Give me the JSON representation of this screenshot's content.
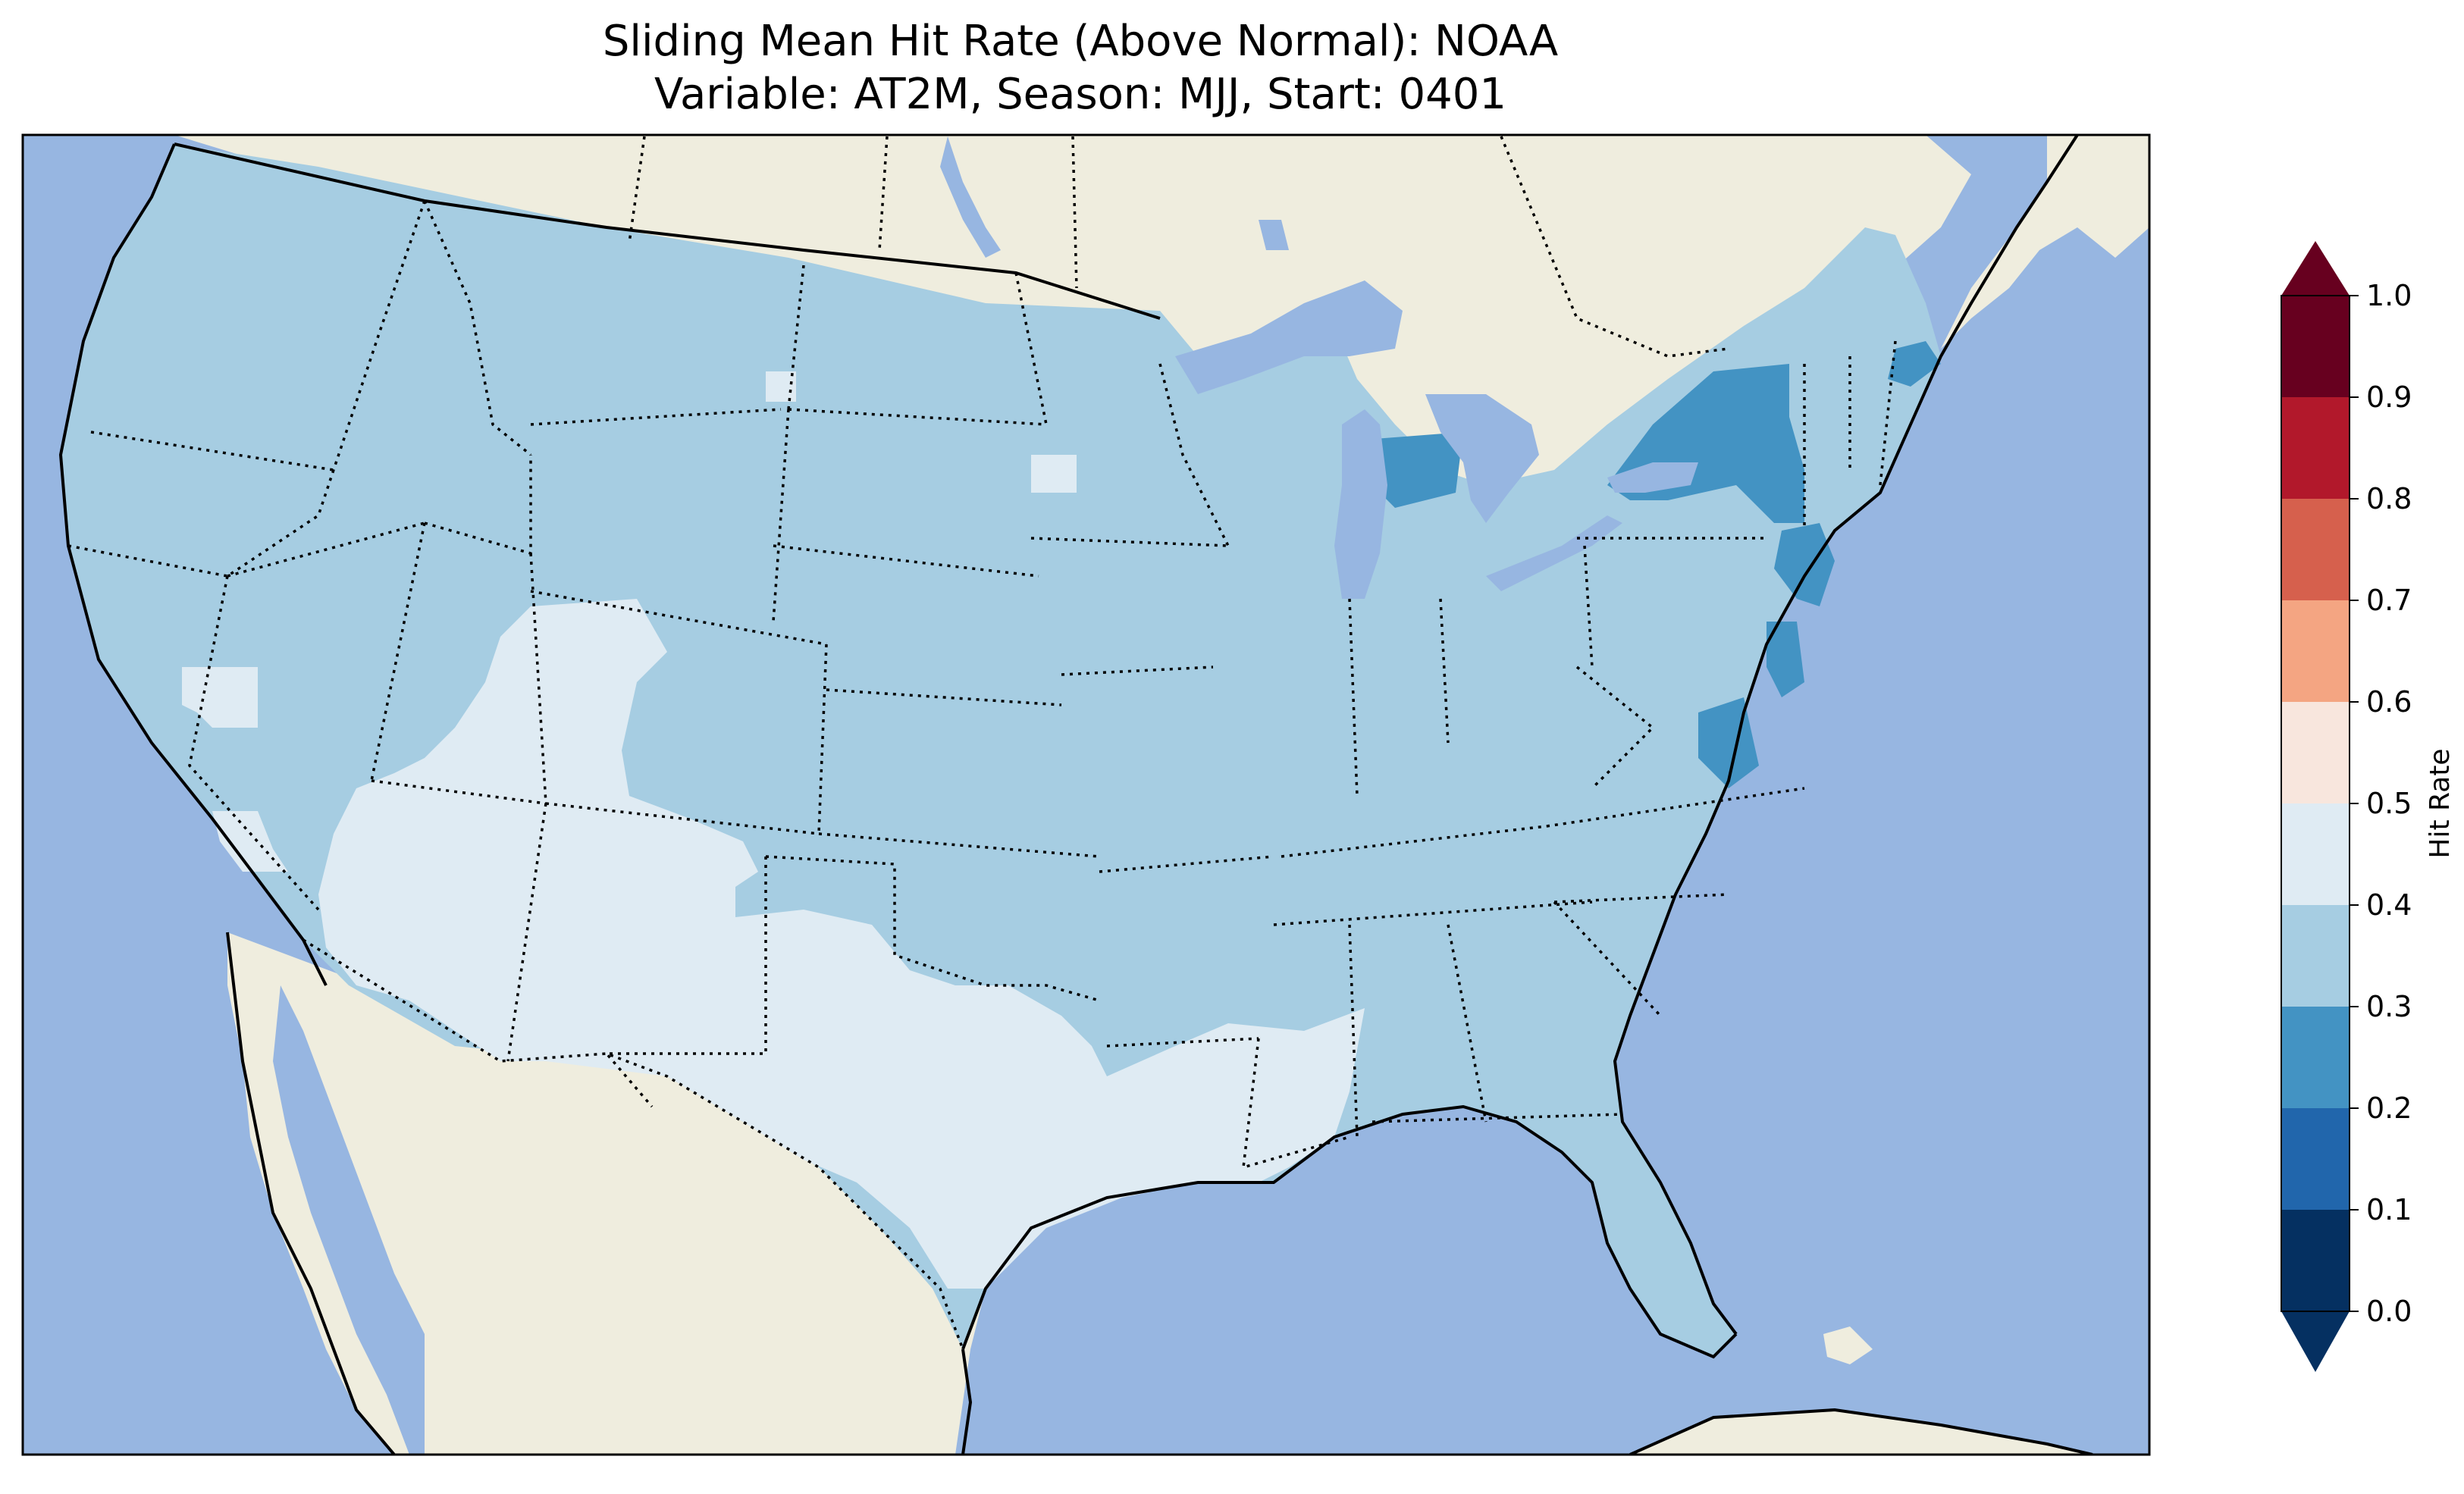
{
  "title": {
    "line1": "Sliding Mean Hit Rate (Above Normal): NOAA",
    "line2": "Variable: AT2M, Season: MJJ, Start: 0401"
  },
  "map": {
    "ocean_color": "#97b6e1",
    "land_color": "#efedde",
    "lake_color": "#97b6e1"
  },
  "colorbar": {
    "label": "Hit Rate",
    "ticks": [
      "0.0",
      "0.1",
      "0.2",
      "0.3",
      "0.4",
      "0.5",
      "0.6",
      "0.7",
      "0.8",
      "0.9",
      "1.0"
    ],
    "bins": [
      {
        "from": 0.0,
        "to": 0.1,
        "color": "#053061"
      },
      {
        "from": 0.1,
        "to": 0.2,
        "color": "#2166ac"
      },
      {
        "from": 0.2,
        "to": 0.3,
        "color": "#4393c3"
      },
      {
        "from": 0.3,
        "to": 0.4,
        "color": "#a6cde2"
      },
      {
        "from": 0.4,
        "to": 0.5,
        "color": "#dfebf3"
      },
      {
        "from": 0.5,
        "to": 0.6,
        "color": "#f8e6dd"
      },
      {
        "from": 0.6,
        "to": 0.7,
        "color": "#f4a582"
      },
      {
        "from": 0.7,
        "to": 0.8,
        "color": "#d6604d"
      },
      {
        "from": 0.8,
        "to": 0.9,
        "color": "#b2182b"
      },
      {
        "from": 0.9,
        "to": 1.0,
        "color": "#67001f"
      }
    ],
    "extend_low_color": "#053061",
    "extend_high_color": "#67001f"
  }
}
